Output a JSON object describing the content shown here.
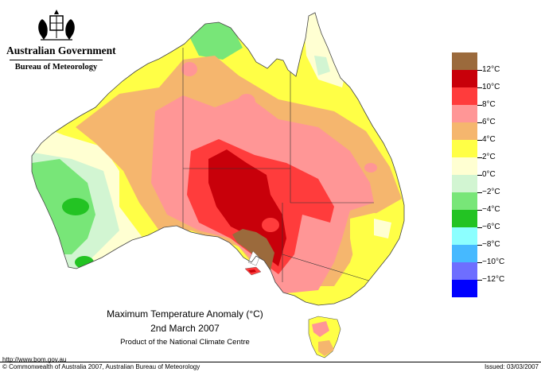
{
  "header": {
    "government": "Australian Government",
    "bureau": "Bureau of Meteorology"
  },
  "legend": {
    "items": [
      {
        "label": "12°C",
        "color": "#9b6a3c"
      },
      {
        "label": "10°C",
        "color": "#c8000a"
      },
      {
        "label": "8°C",
        "color": "#ff3c3c"
      },
      {
        "label": "6°C",
        "color": "#ff9696"
      },
      {
        "label": "4°C",
        "color": "#f5b66e"
      },
      {
        "label": "2°C",
        "color": "#ffff46"
      },
      {
        "label": "0°C",
        "color": "#ffffd2"
      },
      {
        "label": "−2°C",
        "color": "#d2f5d2"
      },
      {
        "label": "−4°C",
        "color": "#78e678"
      },
      {
        "label": "−6°C",
        "color": "#23c323"
      },
      {
        "label": "−8°C",
        "color": "#8cffff"
      },
      {
        "label": "−10°C",
        "color": "#46b9ff"
      },
      {
        "label": "−12°C",
        "color": "#6e6eff"
      },
      {
        "label": "",
        "color": "#0000ff"
      }
    ]
  },
  "title": {
    "line1": "Maximum Temperature Anomaly (°C)",
    "line2": "2nd March 2007",
    "line3": "Product of the National Climate Centre"
  },
  "footer": {
    "url": "http://www.bom.gov.au",
    "copyright": "© Commonwealth of Australia 2007, Australian Bureau of Meteorology",
    "issued": "Issued: 03/03/2007"
  }
}
